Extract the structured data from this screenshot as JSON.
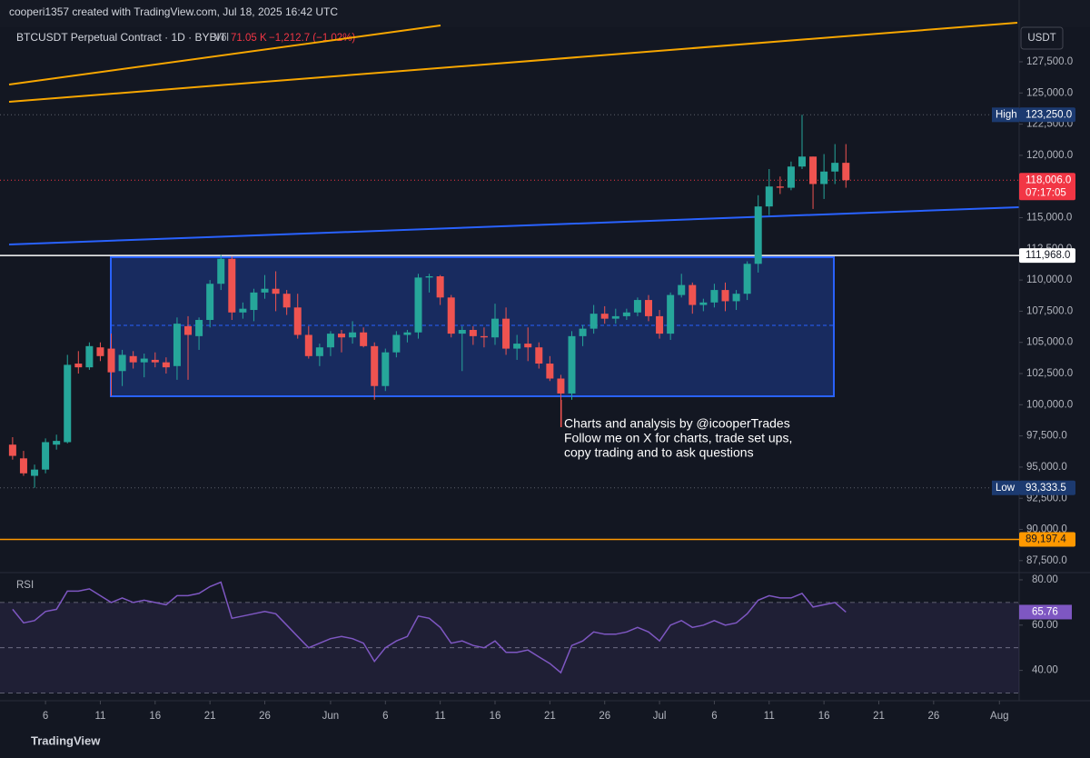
{
  "header": {
    "attribution": "cooperi1357 created with TradingView.com, Jul 18, 2025 16:42 UTC",
    "symbol": "BTCUSDT Perpetual Contract · 1D · BYBIT",
    "volume_label": "Vol",
    "volume": "71.05 K",
    "change": "−1,212.7 (−1.02%)",
    "currency": "USDT",
    "brand": "TradingView"
  },
  "annotation": [
    "Charts and analysis by @icooperTrades",
    "Follow me on X for charts, trade set ups,",
    "copy trading and to ask questions"
  ],
  "chart_data": [
    {
      "type": "candlestick",
      "up_color": "#26a69a",
      "down_color": "#ef5350",
      "x": [
        3,
        4,
        5,
        6,
        7,
        8,
        9,
        10,
        11,
        12,
        13,
        14,
        15,
        16,
        17,
        18,
        19,
        20,
        21,
        22,
        23,
        24,
        25,
        26,
        27,
        28,
        29,
        30,
        31,
        32,
        33,
        34,
        35,
        36,
        37,
        38,
        39,
        40,
        41,
        42,
        43,
        44,
        45,
        46,
        47,
        48,
        49,
        50,
        51,
        52,
        53,
        54,
        55,
        56,
        57,
        58,
        59,
        60,
        61,
        62,
        63,
        64,
        65,
        66,
        67,
        68,
        69,
        70,
        71,
        72,
        73,
        74,
        75,
        76,
        77,
        78,
        79
      ],
      "open": [
        96800,
        95700,
        94300,
        94800,
        96800,
        97000,
        103300,
        103000,
        104600,
        104500,
        102700,
        103900,
        103400,
        103600,
        103400,
        103100,
        106300,
        105500,
        106800,
        109700,
        111700,
        107400,
        107600,
        109000,
        109300,
        108900,
        107800,
        105600,
        103900,
        104600,
        105700,
        105400,
        105800,
        104700,
        101500,
        104200,
        105600,
        105800,
        110200,
        110300,
        108600,
        105700,
        106000,
        105500,
        105400,
        106900,
        104500,
        104900,
        104600,
        103300,
        102100,
        100900,
        105500,
        106100,
        107300,
        106900,
        107100,
        107400,
        108400,
        107100,
        105700,
        108800,
        109600,
        108000,
        108200,
        109200,
        108300,
        108900,
        111300,
        115900,
        117500,
        117400,
        119100,
        119900,
        117700,
        118700,
        119400
      ],
      "high": [
        97400,
        96300,
        95200,
        97300,
        97600,
        104000,
        104300,
        105000,
        105000,
        105700,
        104400,
        104300,
        104100,
        104200,
        103800,
        107000,
        107100,
        107000,
        110000,
        112000,
        111900,
        108200,
        109300,
        110400,
        110700,
        109200,
        108900,
        106300,
        104900,
        105900,
        106000,
        106700,
        106200,
        105000,
        104500,
        105900,
        106000,
        110500,
        110500,
        110400,
        108800,
        106300,
        106300,
        106200,
        108100,
        107800,
        105600,
        106200,
        105000,
        103900,
        102400,
        105900,
        106400,
        108000,
        107900,
        107700,
        107700,
        108600,
        108800,
        107600,
        109000,
        110500,
        109800,
        108500,
        109700,
        109800,
        109200,
        111500,
        116800,
        118900,
        118300,
        119500,
        123250,
        119900,
        120100,
        120900,
        120900
      ],
      "low": [
        95600,
        94300,
        93333.5,
        94500,
        96400,
        96900,
        102500,
        102800,
        103500,
        100700,
        101500,
        102900,
        102200,
        103000,
        102500,
        102000,
        102000,
        104400,
        106200,
        109200,
        106800,
        106900,
        106700,
        108500,
        107500,
        107200,
        105300,
        103700,
        103100,
        103900,
        104200,
        104900,
        104600,
        100400,
        101100,
        103800,
        105000,
        105300,
        109000,
        108000,
        105400,
        102700,
        104800,
        104600,
        104800,
        104000,
        103600,
        103500,
        102900,
        101900,
        98200,
        100400,
        104700,
        105700,
        106500,
        106500,
        106800,
        107100,
        106700,
        105300,
        105200,
        108600,
        107300,
        107500,
        107800,
        107500,
        107600,
        108400,
        110600,
        115200,
        116900,
        117200,
        118900,
        115700,
        116500,
        117700,
        117400
      ],
      "close": [
        95900,
        94500,
        94800,
        97000,
        97100,
        103200,
        103000,
        104700,
        103900,
        102600,
        104000,
        103400,
        103700,
        103400,
        103000,
        106500,
        105600,
        106800,
        109700,
        111700,
        107400,
        107700,
        109000,
        109300,
        108900,
        107800,
        105600,
        103900,
        104600,
        105700,
        105400,
        105800,
        104700,
        101500,
        104200,
        105600,
        105800,
        110200,
        110300,
        108600,
        105700,
        106000,
        105500,
        105400,
        106900,
        104500,
        104900,
        104600,
        103300,
        102100,
        100900,
        105500,
        106100,
        107300,
        106900,
        107100,
        107400,
        108400,
        107100,
        105700,
        108800,
        109600,
        108000,
        108200,
        109200,
        108300,
        108900,
        111300,
        115900,
        117500,
        117400,
        119100,
        119900,
        117700,
        118700,
        119400,
        118006
      ],
      "xlim": [
        1.85,
        94.8
      ],
      "xticks": [
        {
          "value": 6,
          "label": "6"
        },
        {
          "value": 11,
          "label": "11"
        },
        {
          "value": 16,
          "label": "16"
        },
        {
          "value": 21,
          "label": "21"
        },
        {
          "value": 26,
          "label": "26"
        },
        {
          "value": 32,
          "label": "Jun"
        },
        {
          "value": 37,
          "label": "6"
        },
        {
          "value": 42,
          "label": "11"
        },
        {
          "value": 47,
          "label": "16"
        },
        {
          "value": 52,
          "label": "21"
        },
        {
          "value": 57,
          "label": "26"
        },
        {
          "value": 62,
          "label": "Jul"
        },
        {
          "value": 67,
          "label": "6"
        },
        {
          "value": 72,
          "label": "11"
        },
        {
          "value": 77,
          "label": "16"
        },
        {
          "value": 82,
          "label": "21"
        },
        {
          "value": 87,
          "label": "26"
        },
        {
          "value": 93,
          "label": "Aug"
        }
      ],
      "ylim": [
        86540,
        130415
      ],
      "yticks": [
        {
          "value": 87500,
          "label": "87,500.0"
        },
        {
          "value": 90000,
          "label": "90,000.0"
        },
        {
          "value": 92500,
          "label": "92,500.0"
        },
        {
          "value": 95000,
          "label": "95,000.0"
        },
        {
          "value": 97500,
          "label": "97,500.0"
        },
        {
          "value": 100000,
          "label": "100,000.0"
        },
        {
          "value": 102500,
          "label": "102,500.0"
        },
        {
          "value": 105000,
          "label": "105,000.0"
        },
        {
          "value": 107500,
          "label": "107,500.0"
        },
        {
          "value": 110000,
          "label": "110,000.0"
        },
        {
          "value": 112500,
          "label": "112,500.0"
        },
        {
          "value": 115000,
          "label": "115,000.0"
        },
        {
          "value": 117500,
          "label": "117,500.0"
        },
        {
          "value": 120000,
          "label": "120,000.0"
        },
        {
          "value": 122500,
          "label": "122,500.0"
        },
        {
          "value": 125000,
          "label": "125,000.0"
        },
        {
          "value": 127500,
          "label": "127,500.0"
        }
      ],
      "price_lines": [
        {
          "name": "High",
          "value": 123250,
          "label": "123,250.0",
          "color": "#1c3a70",
          "text_color": "#ffffff",
          "line_color": "#5d606b"
        },
        {
          "value": 118006,
          "label": "118,006.0",
          "countdown": "07:17:05",
          "color": "#f23645",
          "text_color": "#ffffff",
          "line_color": "#f23645"
        },
        {
          "value": 111968,
          "label": "111,968.0",
          "color": "#ffffff",
          "text_color": "#131722",
          "line_color": "#ffffff"
        },
        {
          "name": "Low",
          "value": 93333.5,
          "label": "93,333.5",
          "color": "#1c3a70",
          "text_color": "#ffffff",
          "line_color": "#5d606b"
        },
        {
          "value": 89197.4,
          "label": "89,197.4",
          "color": "#ff9800",
          "text_color": "#131722",
          "line_color": "#ff9800"
        }
      ]
    },
    {
      "type": "line",
      "title": "RSI",
      "color": "#7e57c2",
      "values": [
        67,
        61,
        62,
        66,
        67,
        75,
        75,
        76,
        73,
        70,
        72,
        70,
        71,
        70,
        69,
        73,
        73,
        74,
        77,
        79,
        63,
        64,
        65,
        66,
        65,
        60,
        55,
        50,
        52,
        54,
        55,
        54,
        52,
        44,
        50,
        53,
        55,
        64,
        63,
        59,
        52,
        53,
        51,
        50,
        53,
        48,
        48,
        49,
        46,
        43,
        39,
        51,
        53,
        57,
        56,
        56,
        57,
        59,
        57,
        53,
        60,
        62,
        59,
        60,
        62,
        60,
        61,
        65,
        71,
        73,
        72,
        72,
        74,
        68,
        69,
        70,
        65.76
      ],
      "ylim": [
        26.6,
        83.2
      ],
      "yticks": [
        {
          "value": 80,
          "label": "80.00"
        },
        {
          "value": 60,
          "label": "60.00"
        },
        {
          "value": 40,
          "label": "40.00"
        }
      ],
      "bands": [
        70,
        50,
        30
      ]
    }
  ]
}
